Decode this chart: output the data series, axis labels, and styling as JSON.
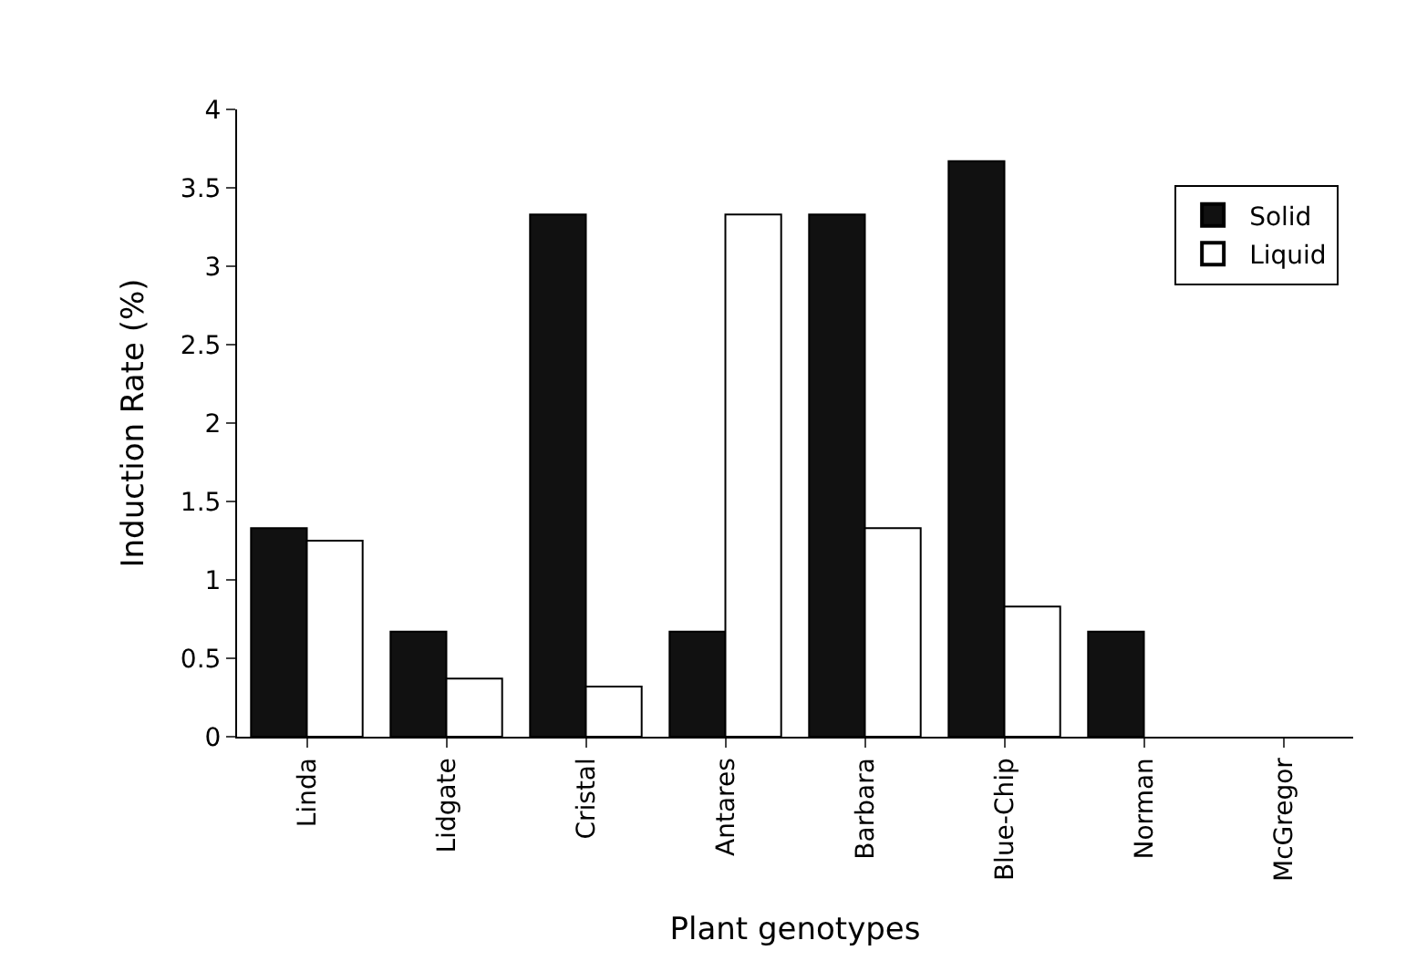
{
  "chart_data": {
    "type": "bar",
    "xlabel": "Plant genotypes",
    "ylabel": "Induction Rate (%)",
    "categories": [
      "Linda",
      "Lidgate",
      "Cristal",
      "Antares",
      "Barbara",
      "Blue-Chip",
      "Norman",
      "McGregor"
    ],
    "series": [
      {
        "name": "Solid",
        "color": "#111111",
        "values": [
          1.33,
          0.67,
          3.33,
          0.67,
          3.33,
          3.67,
          0.67,
          0
        ]
      },
      {
        "name": "Liquid",
        "color": "#ffffff",
        "values": [
          1.25,
          0.37,
          0.32,
          3.33,
          1.33,
          0.83,
          0,
          0
        ]
      }
    ],
    "ylim": [
      0,
      4
    ],
    "yticks": [
      0,
      0.5,
      1,
      1.5,
      2,
      2.5,
      3,
      3.5,
      4
    ],
    "legend": "top right"
  }
}
